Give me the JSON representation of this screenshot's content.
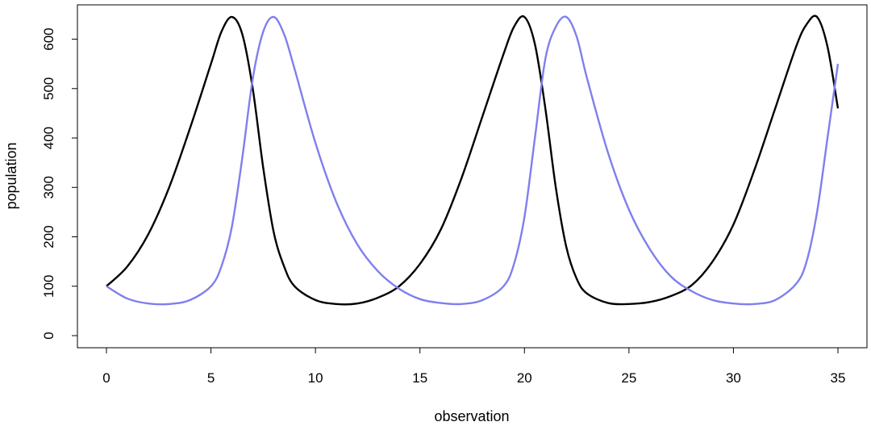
{
  "chart_data": {
    "type": "line",
    "title": "",
    "xlabel": "observation",
    "ylabel": "population",
    "xlim": [
      0,
      35
    ],
    "ylim": [
      0,
      645
    ],
    "x_ticks": [
      0,
      5,
      10,
      15,
      20,
      25,
      30,
      35
    ],
    "y_ticks": [
      0,
      100,
      200,
      300,
      400,
      500,
      600
    ],
    "x_tick_labels": [
      "0",
      "5",
      "10",
      "15",
      "20",
      "25",
      "30",
      "35"
    ],
    "y_tick_labels": [
      "0",
      "100",
      "200",
      "300",
      "400",
      "500",
      "600"
    ],
    "grid": false,
    "legend": "none",
    "series": [
      {
        "color": "#000000",
        "points": [
          [
            0,
            100
          ],
          [
            1,
            140
          ],
          [
            2,
            205
          ],
          [
            3,
            300
          ],
          [
            4,
            420
          ],
          [
            5,
            550
          ],
          [
            5.5,
            615
          ],
          [
            6,
            645
          ],
          [
            6.5,
            610
          ],
          [
            7,
            500
          ],
          [
            7.5,
            340
          ],
          [
            8,
            210
          ],
          [
            8.5,
            140
          ],
          [
            9,
            100
          ],
          [
            10,
            72
          ],
          [
            11,
            64
          ],
          [
            12,
            65
          ],
          [
            13,
            77
          ],
          [
            14,
            100
          ],
          [
            15,
            145
          ],
          [
            16,
            215
          ],
          [
            17,
            320
          ],
          [
            18,
            445
          ],
          [
            19,
            570
          ],
          [
            19.5,
            625
          ],
          [
            20,
            645
          ],
          [
            20.5,
            590
          ],
          [
            21,
            460
          ],
          [
            21.5,
            300
          ],
          [
            22,
            180
          ],
          [
            22.5,
            115
          ],
          [
            23,
            85
          ],
          [
            24,
            66
          ],
          [
            25,
            64
          ],
          [
            26,
            68
          ],
          [
            27,
            80
          ],
          [
            28,
            102
          ],
          [
            29,
            150
          ],
          [
            30,
            225
          ],
          [
            31,
            335
          ],
          [
            32,
            460
          ],
          [
            33,
            585
          ],
          [
            33.5,
            630
          ],
          [
            34,
            645
          ],
          [
            34.5,
            585
          ],
          [
            35,
            460
          ]
        ]
      },
      {
        "color": "#7f7fef",
        "points": [
          [
            0,
            100
          ],
          [
            1,
            75
          ],
          [
            2,
            65
          ],
          [
            3,
            64
          ],
          [
            4,
            72
          ],
          [
            5,
            100
          ],
          [
            5.5,
            140
          ],
          [
            6,
            220
          ],
          [
            6.5,
            360
          ],
          [
            7,
            520
          ],
          [
            7.5,
            615
          ],
          [
            8,
            645
          ],
          [
            8.5,
            610
          ],
          [
            9,
            540
          ],
          [
            10,
            390
          ],
          [
            11,
            270
          ],
          [
            12,
            185
          ],
          [
            13,
            130
          ],
          [
            14,
            95
          ],
          [
            15,
            74
          ],
          [
            16,
            66
          ],
          [
            17,
            64
          ],
          [
            18,
            72
          ],
          [
            19,
            100
          ],
          [
            19.5,
            145
          ],
          [
            20,
            240
          ],
          [
            20.5,
            400
          ],
          [
            21,
            560
          ],
          [
            21.5,
            625
          ],
          [
            22,
            645
          ],
          [
            22.5,
            605
          ],
          [
            23,
            520
          ],
          [
            24,
            370
          ],
          [
            25,
            255
          ],
          [
            26,
            175
          ],
          [
            27,
            120
          ],
          [
            28,
            90
          ],
          [
            29,
            72
          ],
          [
            30,
            65
          ],
          [
            31,
            64
          ],
          [
            32,
            72
          ],
          [
            33,
            105
          ],
          [
            33.5,
            150
          ],
          [
            34,
            250
          ],
          [
            34.5,
            400
          ],
          [
            35,
            550
          ]
        ]
      }
    ]
  }
}
